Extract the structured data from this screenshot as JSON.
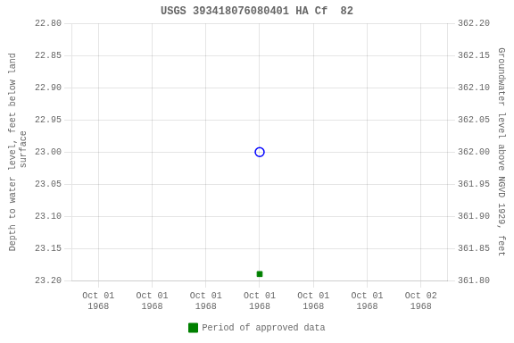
{
  "chart_data": {
    "type": "scatter",
    "title": "USGS 393418076080401 HA Cf  82",
    "categories": [
      "Oct 01\n1968",
      "Oct 01\n1968",
      "Oct 01\n1968",
      "Oct 01\n1968",
      "Oct 01\n1968",
      "Oct 01\n1968",
      "Oct 02\n1968"
    ],
    "series": [
      {
        "color": "#0000ff",
        "marker": "circle_open",
        "values": [
          null,
          null,
          null,
          23.0,
          null,
          null,
          null
        ]
      },
      {
        "name": "Period of approved data",
        "color": "#008000",
        "marker": "square",
        "values": [
          null,
          null,
          null,
          23.19,
          null,
          null,
          null
        ]
      }
    ],
    "y_label": "Depth to water level, feet below land\n surface",
    "y2_label": "Groundwater level above NGVD 1929, feet",
    "ylim": [
      23.2,
      22.8
    ],
    "yticks": [
      {
        "value": 22.8,
        "label": "22.80"
      },
      {
        "value": 22.85,
        "label": "22.85"
      },
      {
        "value": 22.9,
        "label": "22.90"
      },
      {
        "value": 22.95,
        "label": "22.95"
      },
      {
        "value": 23.0,
        "label": "23.00"
      },
      {
        "value": 23.05,
        "label": "23.05"
      },
      {
        "value": 23.1,
        "label": "23.10"
      },
      {
        "value": 23.15,
        "label": "23.15"
      },
      {
        "value": 23.2,
        "label": "23.20"
      }
    ],
    "y2lim": [
      361.8,
      362.2
    ],
    "y2ticks": [
      {
        "value": 362.2,
        "label": "362.20"
      },
      {
        "value": 362.15,
        "label": "362.15"
      },
      {
        "value": 362.1,
        "label": "362.10"
      },
      {
        "value": 362.05,
        "label": "362.05"
      },
      {
        "value": 362.0,
        "label": "362.00"
      },
      {
        "value": 361.95,
        "label": "361.95"
      },
      {
        "value": 361.9,
        "label": "361.90"
      },
      {
        "value": 361.85,
        "label": "361.85"
      },
      {
        "value": 361.8,
        "label": "361.80"
      }
    ],
    "grid": true,
    "legend": "bottom"
  }
}
